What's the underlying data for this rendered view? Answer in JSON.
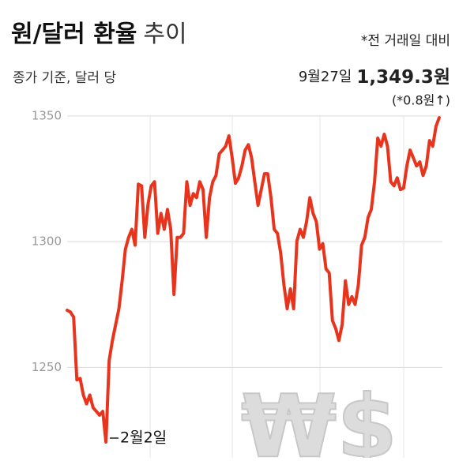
{
  "chart_data": {
    "type": "line",
    "title": "원/달러 환율",
    "title_light": "추이",
    "subtitle": "종가 기준, 달러 당",
    "note": "*전 거래일 대비",
    "last_date": "9월27일",
    "last_value_label": "1,349.3원",
    "change_label": "(*0.8원↑)",
    "annotation": "2월2일",
    "watermark": "₩$",
    "color": "#e8341c",
    "grid": true,
    "ylim": [
      1214,
      1360
    ],
    "yticks": [
      1250,
      1300,
      1350
    ],
    "values": [
      1272.7,
      1272,
      1270,
      1245,
      1245.6,
      1239,
      1235.5,
      1239,
      1234,
      1232.5,
      1231,
      1232.5,
      1220.3,
      1252.8,
      1260.7,
      1267,
      1273.3,
      1284.4,
      1297,
      1301.7,
      1304.9,
      1298.6,
      1322.9,
      1322.2,
      1301.7,
      1315,
      1322.2,
      1323.8,
      1303.3,
      1311.2,
      1304.9,
      1312.8,
      1304.9,
      1279,
      1301.7,
      1301.7,
      1303.3,
      1323.8,
      1314.4,
      1319.1,
      1317.5,
      1323.8,
      1320.7,
      1301.7,
      1317.5,
      1323.8,
      1326.3,
      1334.9,
      1336.4,
      1338,
      1342.1,
      1333.3,
      1323.2,
      1325.4,
      1330.1,
      1336.4,
      1338.6,
      1333.3,
      1323.8,
      1314.4,
      1320.7,
      1327,
      1327,
      1317.5,
      1304.9,
      1303.3,
      1295.4,
      1282.8,
      1273.3,
      1281.2,
      1273.3,
      1300.2,
      1304.9,
      1301.7,
      1308,
      1317.5,
      1311.2,
      1308,
      1297,
      1299.2,
      1289.1,
      1287.6,
      1268.6,
      1265.5,
      1260.7,
      1267,
      1284.4,
      1275,
      1278.1,
      1275,
      1282.8,
      1298.6,
      1301.7,
      1309.6,
      1312.8,
      1323.8,
      1341.2,
      1338,
      1342.7,
      1338,
      1323.8,
      1322.2,
      1325.4,
      1320.7,
      1321.3,
      1330.1,
      1336.4,
      1333.3,
      1330.1,
      1331.7,
      1326.3,
      1330.1,
      1340.2,
      1338,
      1345.9,
      1349.3
    ]
  }
}
